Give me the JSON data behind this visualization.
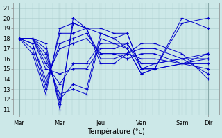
{
  "background_color": "#cce8e8",
  "grid_color": "#aacccc",
  "line_color": "#0000cc",
  "xlabel": "Température (°c)",
  "ylim": [
    10.5,
    21.5
  ],
  "yticks": [
    11,
    12,
    13,
    14,
    15,
    16,
    17,
    18,
    19,
    20,
    21
  ],
  "day_labels": [
    "Mar",
    "Mer",
    "Jeu",
    "Ven",
    "Sam",
    "Dir"
  ],
  "day_x": [
    0,
    55,
    110,
    165,
    220,
    255
  ],
  "series": [
    [
      18.0,
      18.0,
      17.5,
      11.0,
      20.0,
      19.0,
      19.0,
      18.5,
      18.5,
      15.0,
      15.0,
      19.5,
      20.0
    ],
    [
      18.0,
      18.0,
      17.0,
      11.5,
      19.5,
      19.0,
      18.5,
      18.0,
      18.5,
      15.0,
      15.0,
      20.0,
      19.0
    ],
    [
      18.0,
      18.0,
      16.5,
      12.0,
      13.5,
      13.0,
      18.5,
      18.0,
      17.0,
      14.5,
      15.0,
      15.5,
      16.5
    ],
    [
      18.0,
      18.0,
      16.0,
      12.5,
      13.0,
      12.5,
      18.0,
      17.5,
      17.0,
      14.5,
      15.0,
      15.5,
      16.0
    ],
    [
      18.0,
      18.0,
      15.5,
      13.5,
      15.5,
      15.5,
      17.5,
      17.5,
      17.5,
      15.0,
      15.5,
      16.0,
      16.0
    ],
    [
      18.0,
      18.0,
      15.0,
      14.5,
      15.0,
      15.0,
      17.0,
      17.0,
      17.5,
      15.5,
      15.5,
      16.0,
      16.5
    ],
    [
      18.0,
      17.5,
      14.0,
      17.0,
      17.5,
      18.0,
      16.5,
      16.5,
      16.5,
      16.0,
      16.0,
      15.5,
      15.5
    ],
    [
      18.0,
      17.5,
      13.5,
      17.5,
      18.0,
      18.5,
      16.5,
      16.5,
      16.0,
      16.5,
      16.5,
      15.5,
      15.0
    ],
    [
      18.0,
      17.0,
      13.0,
      18.5,
      18.5,
      19.0,
      16.0,
      16.0,
      16.5,
      17.0,
      17.0,
      16.0,
      14.5
    ],
    [
      18.0,
      16.5,
      12.5,
      19.0,
      19.5,
      19.0,
      15.5,
      15.5,
      16.5,
      17.5,
      17.5,
      16.5,
      14.0
    ]
  ]
}
